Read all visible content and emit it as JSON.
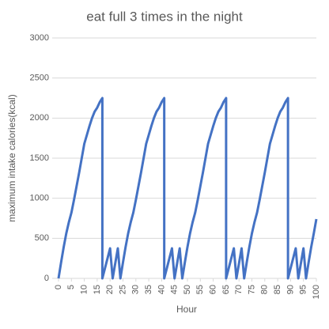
{
  "chart_data": {
    "type": "line",
    "title": "eat full 3 times in the night",
    "xlabel": "Hour",
    "ylabel": "maximum intake calories(kcal)",
    "x": [
      0,
      1,
      2,
      3,
      4,
      5,
      6,
      7,
      8,
      9,
      10,
      11,
      12,
      13,
      14,
      15,
      16,
      17,
      17,
      20,
      21,
      23,
      24,
      25,
      26,
      27,
      28,
      29,
      30,
      31,
      32,
      33,
      34,
      35,
      36,
      37,
      38,
      39,
      40,
      41,
      41,
      44,
      45,
      47,
      48,
      49,
      50,
      51,
      52,
      53,
      54,
      55,
      56,
      57,
      58,
      59,
      60,
      61,
      62,
      63,
      64,
      65,
      65,
      68,
      69,
      71,
      72,
      73,
      74,
      75,
      76,
      77,
      78,
      79,
      80,
      81,
      82,
      83,
      84,
      85,
      86,
      87,
      88,
      89,
      89,
      92,
      93,
      95,
      96,
      97,
      98,
      99,
      100
    ],
    "series": [
      {
        "name": "maximum intake calories",
        "color": "#4472c4",
        "values": [
          0,
          200,
          390,
          560,
          700,
          820,
          980,
          1150,
          1320,
          1500,
          1680,
          1790,
          1900,
          2000,
          2080,
          2130,
          2200,
          2250,
          0,
          375,
          0,
          375,
          0,
          200,
          390,
          560,
          700,
          820,
          980,
          1150,
          1320,
          1500,
          1680,
          1790,
          1900,
          2000,
          2080,
          2130,
          2200,
          2250,
          0,
          375,
          0,
          375,
          0,
          200,
          390,
          560,
          700,
          820,
          980,
          1150,
          1320,
          1500,
          1680,
          1790,
          1900,
          2000,
          2080,
          2130,
          2200,
          2250,
          0,
          375,
          0,
          375,
          0,
          200,
          390,
          560,
          700,
          820,
          980,
          1150,
          1320,
          1500,
          1680,
          1790,
          1900,
          2000,
          2080,
          2130,
          2200,
          2250,
          0,
          375,
          0,
          375,
          0,
          200,
          390,
          560,
          740
        ]
      }
    ],
    "xlim": [
      0,
      100
    ],
    "xticks": [
      0,
      5,
      10,
      15,
      20,
      25,
      30,
      35,
      40,
      45,
      50,
      55,
      60,
      65,
      70,
      75,
      80,
      85,
      90,
      95,
      100
    ],
    "ylim": [
      0,
      3000
    ],
    "yticks": [
      0,
      500,
      1000,
      1500,
      2000,
      2500,
      3000
    ],
    "grid": true
  }
}
